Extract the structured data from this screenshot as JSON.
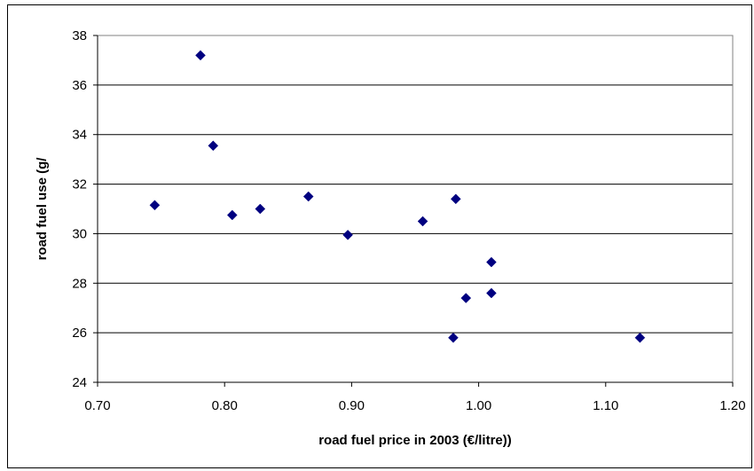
{
  "chart_data": {
    "type": "scatter",
    "title": "",
    "xlabel": "road fuel price in 2003 (€/litre))",
    "ylabel": "road fuel use (g/",
    "xlim": [
      0.7,
      1.2
    ],
    "ylim": [
      24,
      38
    ],
    "x_ticks": [
      "0.70",
      "0.80",
      "0.90",
      "1.00",
      "1.10",
      "1.20"
    ],
    "y_ticks": [
      "24",
      "26",
      "28",
      "30",
      "32",
      "34",
      "36",
      "38"
    ],
    "grid": "horizontal",
    "legend": "none",
    "marker": "diamond",
    "marker_color": "#000080",
    "points": [
      {
        "x": 0.745,
        "y": 31.15
      },
      {
        "x": 0.781,
        "y": 37.2
      },
      {
        "x": 0.791,
        "y": 33.55
      },
      {
        "x": 0.806,
        "y": 30.75
      },
      {
        "x": 0.828,
        "y": 31.0
      },
      {
        "x": 0.866,
        "y": 31.5
      },
      {
        "x": 0.897,
        "y": 29.95
      },
      {
        "x": 0.956,
        "y": 30.5
      },
      {
        "x": 0.98,
        "y": 25.8
      },
      {
        "x": 0.982,
        "y": 31.4
      },
      {
        "x": 0.99,
        "y": 27.4
      },
      {
        "x": 1.01,
        "y": 28.85
      },
      {
        "x": 1.01,
        "y": 27.6
      },
      {
        "x": 1.127,
        "y": 25.8
      }
    ]
  }
}
